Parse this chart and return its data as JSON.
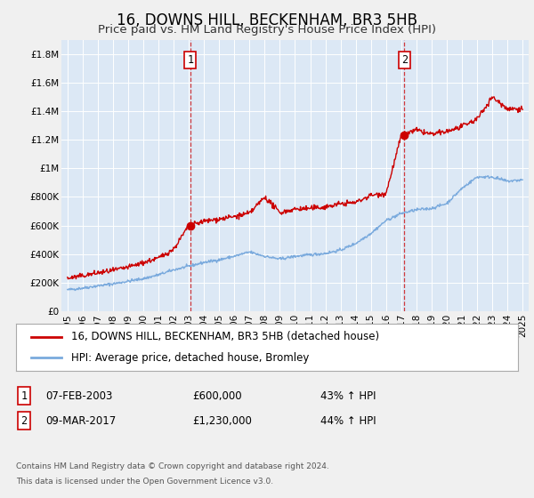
{
  "title": "16, DOWNS HILL, BECKENHAM, BR3 5HB",
  "subtitle": "Price paid vs. HM Land Registry's House Price Index (HPI)",
  "ylim": [
    0,
    1900000
  ],
  "yticks": [
    0,
    200000,
    400000,
    600000,
    800000,
    1000000,
    1200000,
    1400000,
    1600000,
    1800000
  ],
  "ytick_labels": [
    "£0",
    "£200K",
    "£400K",
    "£600K",
    "£800K",
    "£1M",
    "£1.2M",
    "£1.4M",
    "£1.6M",
    "£1.8M"
  ],
  "xlim_start": 1994.6,
  "xlim_end": 2025.4,
  "xticks": [
    1995,
    1996,
    1997,
    1998,
    1999,
    2000,
    2001,
    2002,
    2003,
    2004,
    2005,
    2006,
    2007,
    2008,
    2009,
    2010,
    2011,
    2012,
    2013,
    2014,
    2015,
    2016,
    2017,
    2018,
    2019,
    2020,
    2021,
    2022,
    2023,
    2024,
    2025
  ],
  "fig_bg_color": "#f0f0f0",
  "plot_bg_color": "#dce8f5",
  "grid_color": "#ffffff",
  "red_line_color": "#cc0000",
  "blue_line_color": "#7aaadd",
  "sale1_x": 2003.1,
  "sale1_y": 600000,
  "sale2_x": 2017.2,
  "sale2_y": 1230000,
  "legend_label_red": "16, DOWNS HILL, BECKENHAM, BR3 5HB (detached house)",
  "legend_label_blue": "HPI: Average price, detached house, Bromley",
  "table_row1": [
    "1",
    "07-FEB-2003",
    "£600,000",
    "43% ↑ HPI"
  ],
  "table_row2": [
    "2",
    "09-MAR-2017",
    "£1,230,000",
    "44% ↑ HPI"
  ],
  "footer1": "Contains HM Land Registry data © Crown copyright and database right 2024.",
  "footer2": "This data is licensed under the Open Government Licence v3.0.",
  "title_fontsize": 12,
  "subtitle_fontsize": 9.5,
  "tick_fontsize": 7.5,
  "legend_fontsize": 8.5,
  "hpi_years": [
    1995,
    1996,
    1997,
    1998,
    1999,
    2000,
    2001,
    2002,
    2003,
    2004,
    2005,
    2006,
    2007,
    2008,
    2009,
    2010,
    2011,
    2012,
    2013,
    2014,
    2015,
    2016,
    2017,
    2018,
    2019,
    2020,
    2021,
    2022,
    2023,
    2024,
    2025
  ],
  "hpi_vals": [
    150000,
    162000,
    178000,
    192000,
    210000,
    228000,
    255000,
    290000,
    315000,
    342000,
    360000,
    385000,
    415000,
    385000,
    365000,
    385000,
    395000,
    405000,
    428000,
    475000,
    545000,
    635000,
    685000,
    710000,
    720000,
    755000,
    860000,
    940000,
    940000,
    910000,
    920000
  ],
  "house_years": [
    1995,
    1996,
    1997,
    1998,
    1999,
    2000,
    2001,
    2002,
    2003,
    2004,
    2005,
    2006,
    2007,
    2008,
    2009,
    2010,
    2011,
    2012,
    2013,
    2014,
    2015,
    2016,
    2017,
    2018,
    2019,
    2020,
    2021,
    2022,
    2023,
    2024,
    2025
  ],
  "house_vals": [
    230000,
    248000,
    268000,
    285000,
    308000,
    340000,
    372000,
    435000,
    600000,
    630000,
    645000,
    662000,
    685000,
    800000,
    690000,
    715000,
    720000,
    730000,
    752000,
    762000,
    812000,
    825000,
    1230000,
    1268000,
    1238000,
    1258000,
    1292000,
    1345000,
    1500000,
    1418000,
    1418000
  ]
}
